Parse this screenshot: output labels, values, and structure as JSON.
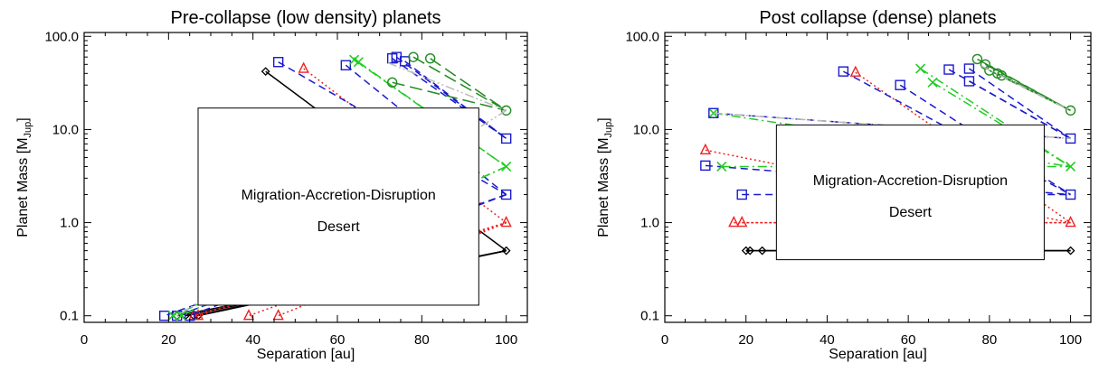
{
  "chart_data": [
    {
      "type": "line",
      "title": "Pre-collapse (low density) planets",
      "xlabel": "Separation [au]",
      "ylabel_main": "Planet Mass [M",
      "ylabel_sub": "Jup",
      "ylabel_close": "]",
      "xlim": [
        0,
        105
      ],
      "ylim": [
        0.085,
        110
      ],
      "yscale": "log",
      "xticks": [
        0,
        20,
        40,
        60,
        80,
        100
      ],
      "xtick_labels": [
        "0",
        "20",
        "40",
        "60",
        "80",
        "100"
      ],
      "yticks": [
        0.1,
        1.0,
        10.0,
        100.0
      ],
      "ytick_labels": [
        "0.1",
        "1.0",
        "10.0",
        "100.0"
      ],
      "annotation": {
        "line1": "Migration-Accretion-Disruption",
        "line2": "Desert",
        "x": [
          27,
          93.5
        ],
        "y": [
          0.13,
          17
        ]
      },
      "series": [
        {
          "mass": 0.5,
          "marker": "diamond",
          "color": "#000000",
          "dash": "",
          "tracks": [
            [
              [
                43,
                42
              ],
              [
                100,
                0.5
              ]
            ],
            [
              [
                100,
                0.5
              ],
              [
                27,
                0.1
              ]
            ],
            [
              [
                100,
                0.5
              ],
              [
                26,
                0.1
              ]
            ],
            [
              [
                100,
                0.5
              ],
              [
                24,
                0.1
              ]
            ],
            [
              [
                100,
                0.5
              ],
              [
                22,
                0.1
              ]
            ]
          ]
        },
        {
          "mass": 1.0,
          "marker": "triangle",
          "color": "#ee2222",
          "dash": "2,3",
          "tracks": [
            [
              [
                52,
                45
              ],
              [
                100,
                1.0
              ]
            ],
            [
              [
                100,
                1.0
              ],
              [
                46,
                0.1
              ]
            ],
            [
              [
                100,
                1.0
              ],
              [
                39,
                0.1
              ]
            ],
            [
              [
                100,
                1.0
              ],
              [
                27,
                0.1
              ]
            ],
            [
              [
                100,
                1.0
              ],
              [
                26,
                0.1
              ]
            ]
          ]
        },
        {
          "mass": 2.0,
          "marker": "square",
          "color": "#1a1acc",
          "dash": "8,5",
          "tracks": [
            [
              [
                46,
                53
              ],
              [
                100,
                2.0
              ]
            ],
            [
              [
                62,
                49
              ],
              [
                100,
                2.0
              ]
            ],
            [
              [
                100,
                2.0
              ],
              [
                25,
                0.1
              ]
            ],
            [
              [
                100,
                2.0
              ],
              [
                22,
                0.1
              ]
            ],
            [
              [
                100,
                2.0
              ],
              [
                19,
                0.1
              ]
            ]
          ]
        },
        {
          "mass": 4.0,
          "marker": "x",
          "color": "#22cc22",
          "dash": "10,4,2,4",
          "tracks": [
            [
              [
                64,
                56
              ],
              [
                100,
                4.0
              ]
            ],
            [
              [
                65,
                53
              ],
              [
                100,
                4.0
              ]
            ],
            [
              [
                100,
                4.0
              ],
              [
                23,
                0.1
              ]
            ],
            [
              [
                100,
                4.0
              ],
              [
                21,
                0.1
              ]
            ]
          ]
        },
        {
          "mass": 8.0,
          "marker": "square",
          "color": "#1a1acc",
          "dash": "8,5",
          "tracks": [
            [
              [
                73,
                58
              ],
              [
                100,
                8.0
              ]
            ],
            [
              [
                74,
                60
              ],
              [
                100,
                8.0
              ]
            ],
            [
              [
                76,
                54
              ],
              [
                100,
                8.0
              ]
            ]
          ]
        },
        {
          "mass": 16.0,
          "marker": "circle",
          "color": "#228b22",
          "dash": "14,6",
          "tracks": [
            [
              [
                78,
                60
              ],
              [
                100,
                16.0
              ]
            ],
            [
              [
                82,
                58
              ],
              [
                100,
                16.0
              ]
            ],
            [
              [
                73,
                32
              ],
              [
                100,
                16.0
              ]
            ]
          ]
        },
        {
          "mass": 16.0,
          "marker": "none",
          "color": "#bbbbbb",
          "dash": "10,3,2,3,2,3",
          "tracks": [
            [
              [
                72,
                52
              ],
              [
                100,
                16.0
              ]
            ],
            [
              [
                100,
                16.0
              ],
              [
                22,
                0.1
              ]
            ]
          ]
        }
      ]
    },
    {
      "type": "line",
      "title": "Post collapse (dense) planets",
      "xlabel": "Separation [au]",
      "ylabel_main": "Planet Mass [M",
      "ylabel_sub": "Jup",
      "ylabel_close": "]",
      "xlim": [
        0,
        105
      ],
      "ylim": [
        0.085,
        110
      ],
      "yscale": "log",
      "xticks": [
        0,
        20,
        40,
        60,
        80,
        100
      ],
      "xtick_labels": [
        "0",
        "20",
        "40",
        "60",
        "80",
        "100"
      ],
      "yticks": [
        0.1,
        1.0,
        10.0,
        100.0
      ],
      "ytick_labels": [
        "0.1",
        "1.0",
        "10.0",
        "100.0"
      ],
      "annotation": {
        "line1": "Migration-Accretion-Disruption",
        "line2": "Desert",
        "x": [
          27.5,
          93.5
        ],
        "y": [
          0.4,
          11.2
        ]
      },
      "series": [
        {
          "mass": 0.5,
          "marker": "diamond",
          "color": "#000000",
          "dash": "",
          "tracks": [
            [
              [
                20,
                0.5
              ],
              [
                100,
                0.5
              ]
            ],
            [
              [
                21,
                0.5
              ],
              [
                100,
                0.5
              ]
            ],
            [
              [
                24,
                0.5
              ],
              [
                100,
                0.5
              ]
            ]
          ]
        },
        {
          "mass": 1.0,
          "marker": "triangle",
          "color": "#ee2222",
          "dash": "2,3",
          "tracks": [
            [
              [
                10,
                6
              ],
              [
                100,
                1.0
              ]
            ],
            [
              [
                17,
                1.0
              ],
              [
                100,
                1.0
              ]
            ],
            [
              [
                19,
                1.0
              ],
              [
                100,
                1.0
              ]
            ],
            [
              [
                47,
                41
              ],
              [
                100,
                1.0
              ]
            ]
          ]
        },
        {
          "mass": 2.0,
          "marker": "square",
          "color": "#1a1acc",
          "dash": "8,5",
          "tracks": [
            [
              [
                10,
                4.1
              ],
              [
                100,
                2.0
              ]
            ],
            [
              [
                19,
                2.0
              ],
              [
                100,
                2.0
              ]
            ],
            [
              [
                44,
                42
              ],
              [
                100,
                2.0
              ]
            ],
            [
              [
                58,
                30
              ],
              [
                100,
                2.0
              ]
            ]
          ]
        },
        {
          "mass": 4.0,
          "marker": "x",
          "color": "#22cc22",
          "dash": "10,4,2,4",
          "tracks": [
            [
              [
                12,
                15
              ],
              [
                100,
                4.0
              ]
            ],
            [
              [
                14,
                4.0
              ],
              [
                100,
                4.0
              ]
            ],
            [
              [
                63,
                45
              ],
              [
                100,
                4.0
              ]
            ],
            [
              [
                66,
                32
              ],
              [
                100,
                4.0
              ]
            ]
          ]
        },
        {
          "mass": 8.0,
          "marker": "square",
          "color": "#1a1acc",
          "dash": "8,5",
          "tracks": [
            [
              [
                12,
                15
              ],
              [
                100,
                8.0
              ]
            ],
            [
              [
                70,
                44
              ],
              [
                100,
                8.0
              ]
            ],
            [
              [
                75,
                45
              ],
              [
                100,
                8.0
              ]
            ],
            [
              [
                75,
                33
              ],
              [
                100,
                8.0
              ]
            ]
          ]
        },
        {
          "mass": 16.0,
          "marker": "circle",
          "color": "#228b22",
          "dash": "14,6",
          "tracks": [
            [
              [
                77,
                57
              ],
              [
                100,
                16.0
              ]
            ],
            [
              [
                79,
                50
              ],
              [
                100,
                16.0
              ]
            ],
            [
              [
                80,
                43
              ],
              [
                100,
                16.0
              ]
            ],
            [
              [
                83,
                38
              ],
              [
                100,
                16.0
              ]
            ],
            [
              [
                82,
                40
              ],
              [
                100,
                16.0
              ]
            ]
          ]
        },
        {
          "mass": 16.0,
          "marker": "none",
          "color": "#bbbbbb",
          "dash": "10,3,2,3,2,3",
          "tracks": [
            [
              [
                12,
                15
              ],
              [
                100,
                8.0
              ]
            ],
            [
              [
                78,
                48
              ],
              [
                100,
                16.0
              ]
            ]
          ]
        }
      ]
    }
  ]
}
